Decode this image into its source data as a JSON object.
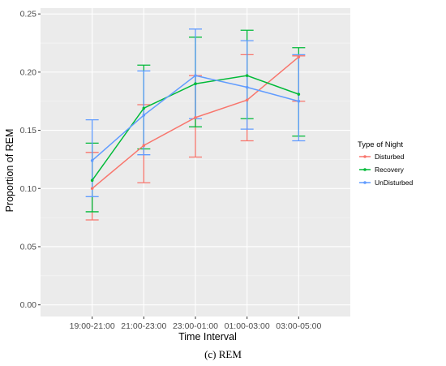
{
  "chart_data": {
    "type": "line",
    "categories": [
      "19:00-21:00",
      "21:00-23:00",
      "23:00-01:00",
      "01:00-03:00",
      "03:00-05:00"
    ],
    "xlabel": "Time Interval",
    "ylabel": "Proportion of REM",
    "ylim": [
      -0.01,
      0.255
    ],
    "yticks": [
      "0.00",
      "0.05",
      "0.10",
      "0.15",
      "0.20",
      "0.25"
    ],
    "grid": true,
    "legend": {
      "title": "Type of Night",
      "placement": "right"
    },
    "series": [
      {
        "name": "Disturbed",
        "color": "#F8766D",
        "values": [
          0.1,
          0.137,
          0.161,
          0.176,
          0.213
        ],
        "error_low": [
          0.073,
          0.105,
          0.127,
          0.141,
          0.175
        ],
        "error_high": [
          0.131,
          0.172,
          0.197,
          0.215,
          0.214
        ]
      },
      {
        "name": "Recovery",
        "color": "#00BA38",
        "values": [
          0.107,
          0.169,
          0.19,
          0.197,
          0.181
        ],
        "error_low": [
          0.08,
          0.134,
          0.153,
          0.16,
          0.145
        ],
        "error_high": [
          0.139,
          0.206,
          0.23,
          0.236,
          0.221
        ]
      },
      {
        "name": "UnDisturbed",
        "color": "#619CFF",
        "values": [
          0.124,
          0.163,
          0.197,
          0.187,
          0.175
        ],
        "error_low": [
          0.093,
          0.129,
          0.16,
          0.151,
          0.141
        ],
        "error_high": [
          0.159,
          0.201,
          0.237,
          0.227,
          0.215
        ]
      }
    ]
  },
  "caption": "(c) REM"
}
